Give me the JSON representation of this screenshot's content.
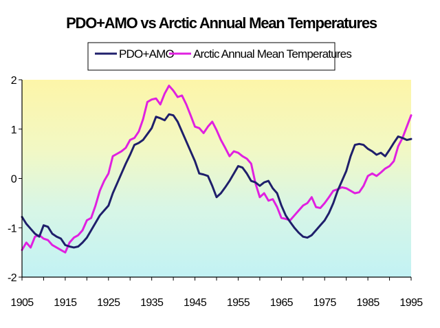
{
  "chart_data": {
    "type": "line",
    "title": "PDO+AMO vs Arctic Annual Mean Temperatures",
    "xlabel": "",
    "ylabel": "",
    "xlim": [
      1905,
      1995
    ],
    "ylim": [
      -2,
      2
    ],
    "x_ticks": [
      "1905",
      "1915",
      "1925",
      "1935",
      "1945",
      "1955",
      "1965",
      "1975",
      "1985",
      "1995"
    ],
    "y_ticks": [
      "2",
      "1",
      "0",
      "-1",
      "-2"
    ],
    "grid": false,
    "legend_position": "top",
    "x": [
      1905,
      1906,
      1907,
      1908,
      1909,
      1910,
      1911,
      1912,
      1913,
      1914,
      1915,
      1916,
      1917,
      1918,
      1919,
      1920,
      1921,
      1922,
      1923,
      1924,
      1925,
      1926,
      1927,
      1928,
      1929,
      1930,
      1931,
      1932,
      1933,
      1934,
      1935,
      1936,
      1937,
      1938,
      1939,
      1940,
      1941,
      1942,
      1943,
      1944,
      1945,
      1946,
      1947,
      1948,
      1949,
      1950,
      1951,
      1952,
      1953,
      1954,
      1955,
      1956,
      1957,
      1958,
      1959,
      1960,
      1961,
      1962,
      1963,
      1964,
      1965,
      1966,
      1967,
      1968,
      1969,
      1970,
      1971,
      1972,
      1973,
      1974,
      1975,
      1976,
      1977,
      1978,
      1979,
      1980,
      1981,
      1982,
      1983,
      1984,
      1985,
      1986,
      1987,
      1988,
      1989,
      1990,
      1991,
      1992,
      1993,
      1994,
      1995
    ],
    "series": [
      {
        "name": "PDO+AMO",
        "color": "#1f1f6b",
        "values": [
          -0.78,
          -0.92,
          -1.02,
          -1.12,
          -1.18,
          -0.95,
          -0.98,
          -1.12,
          -1.18,
          -1.22,
          -1.35,
          -1.38,
          -1.4,
          -1.38,
          -1.3,
          -1.2,
          -1.05,
          -0.9,
          -0.75,
          -0.65,
          -0.55,
          -0.3,
          -0.1,
          0.1,
          0.3,
          0.48,
          0.68,
          0.72,
          0.78,
          0.9,
          1.02,
          1.25,
          1.22,
          1.18,
          1.3,
          1.28,
          1.15,
          0.95,
          0.75,
          0.55,
          0.35,
          0.1,
          0.08,
          0.05,
          -0.15,
          -0.38,
          -0.3,
          -0.18,
          -0.05,
          0.1,
          0.25,
          0.22,
          0.1,
          -0.05,
          -0.08,
          -0.15,
          -0.08,
          -0.05,
          -0.2,
          -0.3,
          -0.55,
          -0.75,
          -0.88,
          -1.0,
          -1.1,
          -1.18,
          -1.2,
          -1.15,
          -1.05,
          -0.95,
          -0.85,
          -0.7,
          -0.5,
          -0.25,
          -0.05,
          0.15,
          0.45,
          0.68,
          0.7,
          0.68,
          0.6,
          0.55,
          0.48,
          0.52,
          0.45,
          0.58,
          0.72,
          0.85,
          0.82,
          0.78,
          0.8
        ]
      },
      {
        "name": "Arctic Annual Mean Temperatures",
        "color": "#e020e0",
        "values": [
          -1.45,
          -1.3,
          -1.4,
          -1.18,
          -1.15,
          -1.22,
          -1.25,
          -1.35,
          -1.4,
          -1.45,
          -1.5,
          -1.3,
          -1.2,
          -1.15,
          -1.05,
          -0.85,
          -0.8,
          -0.55,
          -0.25,
          -0.05,
          0.1,
          0.45,
          0.5,
          0.55,
          0.62,
          0.78,
          0.82,
          0.95,
          1.2,
          1.55,
          1.6,
          1.62,
          1.5,
          1.72,
          1.88,
          1.78,
          1.65,
          1.68,
          1.5,
          1.28,
          1.05,
          1.02,
          0.92,
          1.05,
          1.15,
          0.98,
          0.78,
          0.62,
          0.45,
          0.55,
          0.52,
          0.45,
          0.4,
          0.3,
          -0.1,
          -0.38,
          -0.3,
          -0.45,
          -0.42,
          -0.58,
          -0.8,
          -0.82,
          -0.85,
          -0.75,
          -0.65,
          -0.55,
          -0.5,
          -0.38,
          -0.58,
          -0.6,
          -0.5,
          -0.38,
          -0.25,
          -0.22,
          -0.18,
          -0.2,
          -0.25,
          -0.3,
          -0.28,
          -0.15,
          0.05,
          0.1,
          0.05,
          0.12,
          0.2,
          0.25,
          0.35,
          0.65,
          0.82,
          1.05,
          1.28
        ]
      }
    ]
  }
}
